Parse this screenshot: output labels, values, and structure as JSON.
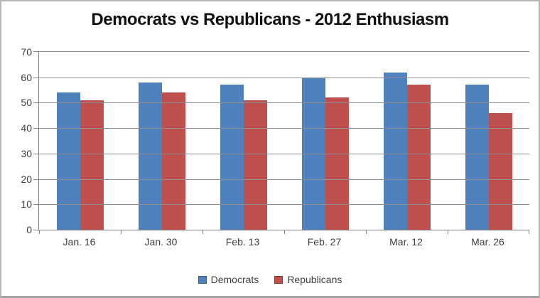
{
  "window": {
    "background": "#ffffff",
    "border_color": "#b7b7b7"
  },
  "chart_data": {
    "type": "bar",
    "title": "Democrats vs Republicans - 2012 Enthusiasm",
    "categories": [
      "Jan. 16",
      "Jan. 30",
      "Feb. 13",
      "Feb. 27",
      "Mar. 12",
      "Mar. 26"
    ],
    "series": [
      {
        "name": "Democrats",
        "color": "#4F81BD",
        "values": [
          54,
          58,
          57,
          60,
          62,
          57
        ]
      },
      {
        "name": "Republicans",
        "color": "#C0504D",
        "values": [
          51,
          54,
          51,
          52,
          57,
          46
        ]
      }
    ],
    "xlabel": "",
    "ylabel": "",
    "ylim": [
      0,
      70
    ],
    "yticks": [
      0,
      10,
      20,
      30,
      40,
      50,
      60,
      70
    ],
    "grid": true,
    "gridline_color": "#8e8e8e",
    "axis_color": "#808080",
    "tick_label_color": "#3f3f3f",
    "legend_position": "bottom"
  }
}
